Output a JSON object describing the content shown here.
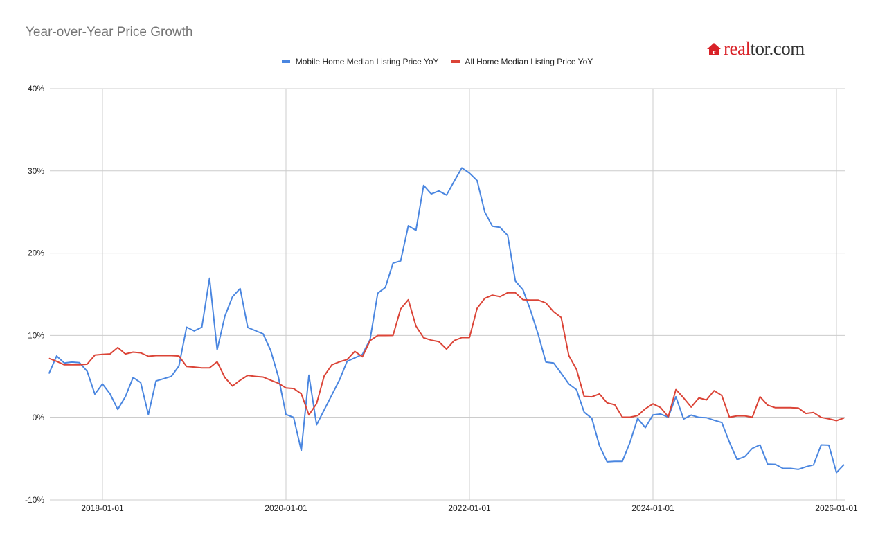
{
  "chart_data": {
    "type": "line",
    "title": "Year-over-Year Price Growth",
    "xlabel": "",
    "ylabel": "",
    "ylim": [
      -10,
      40
    ],
    "y_ticks": [
      "-10%",
      "0%",
      "10%",
      "20%",
      "30%",
      "40%"
    ],
    "y_tick_values": [
      -10,
      0,
      10,
      20,
      30,
      40
    ],
    "x_ticks": [
      "2018-01-01",
      "2020-01-01",
      "2022-01-01",
      "2024-01-01",
      "2026-01-01"
    ],
    "grid": true,
    "legend_position": "top",
    "x": [
      "2017-06",
      "2017-07",
      "2017-08",
      "2017-09",
      "2017-10",
      "2017-11",
      "2017-12",
      "2018-01",
      "2018-02",
      "2018-03",
      "2018-04",
      "2018-05",
      "2018-06",
      "2018-07",
      "2018-08",
      "2018-09",
      "2018-10",
      "2018-11",
      "2018-12",
      "2019-01",
      "2019-02",
      "2019-03",
      "2019-04",
      "2019-05",
      "2019-06",
      "2019-07",
      "2019-08",
      "2019-09",
      "2019-10",
      "2019-11",
      "2019-12",
      "2020-01",
      "2020-02",
      "2020-03",
      "2020-04",
      "2020-05",
      "2020-06",
      "2020-07",
      "2020-08",
      "2020-09",
      "2020-10",
      "2020-11",
      "2020-12",
      "2021-01",
      "2021-02",
      "2021-03",
      "2021-04",
      "2021-05",
      "2021-06",
      "2021-07",
      "2021-08",
      "2021-09",
      "2021-10",
      "2021-11",
      "2021-12",
      "2022-01",
      "2022-02",
      "2022-03",
      "2022-04",
      "2022-05",
      "2022-06",
      "2022-07",
      "2022-08",
      "2022-09",
      "2022-10",
      "2022-11",
      "2022-12",
      "2023-01",
      "2023-02",
      "2023-03",
      "2023-04",
      "2023-05",
      "2023-06",
      "2023-07",
      "2023-08",
      "2023-09",
      "2023-10",
      "2023-11",
      "2023-12",
      "2024-01",
      "2024-02",
      "2024-03",
      "2024-04",
      "2024-05",
      "2024-06",
      "2024-07",
      "2024-08",
      "2024-09",
      "2024-10",
      "2024-11",
      "2024-12",
      "2025-01",
      "2025-02",
      "2025-03",
      "2025-04",
      "2025-05",
      "2025-06",
      "2025-07",
      "2025-08",
      "2025-09",
      "2025-10",
      "2025-11",
      "2025-12",
      "2026-01",
      "2026-02"
    ],
    "series": [
      {
        "name": "Mobile Home Median Listing Price YoY",
        "color": "#4a86e0",
        "values": [
          5.36,
          7.5,
          6.65,
          6.76,
          6.68,
          5.64,
          2.86,
          4.1,
          2.89,
          1.01,
          2.55,
          4.88,
          4.26,
          0.39,
          4.46,
          4.74,
          5.02,
          6.29,
          11.0,
          10.55,
          11.0,
          16.95,
          8.25,
          12.32,
          14.7,
          15.7,
          10.97,
          10.58,
          10.2,
          8.17,
          4.97,
          0.39,
          0.03,
          -4.0,
          5.17,
          -0.87,
          0.95,
          2.78,
          4.6,
          6.85,
          7.27,
          7.69,
          9.52,
          15.13,
          15.83,
          18.78,
          19.06,
          23.33,
          22.77,
          28.24,
          27.2,
          27.56,
          27.06,
          28.74,
          30.37,
          29.73,
          28.83,
          25.0,
          23.27,
          23.13,
          22.15,
          16.62,
          15.55,
          13.03,
          10.08,
          6.76,
          6.65,
          5.4,
          4.1,
          3.4,
          0.67,
          -0.08,
          -3.4,
          -5.36,
          -5.3,
          -5.3,
          -2.98,
          -0.08,
          -1.21,
          0.34,
          0.45,
          0.06,
          2.55,
          -0.17,
          0.31,
          0.03,
          0.0,
          -0.31,
          -0.59,
          -2.98,
          -5.08,
          -4.74,
          -3.73,
          -3.31,
          -5.64,
          -5.67,
          -6.17,
          -6.17,
          -6.29,
          -5.98,
          -5.73,
          -3.31,
          -3.34,
          -6.68,
          -5.7
        ]
      },
      {
        "name": "All Home Median Listing Price YoY",
        "color": "#db4437",
        "values": [
          7.21,
          6.85,
          6.43,
          6.43,
          6.43,
          6.51,
          7.61,
          7.69,
          7.75,
          8.53,
          7.75,
          7.97,
          7.89,
          7.47,
          7.55,
          7.55,
          7.55,
          7.5,
          6.23,
          6.15,
          6.06,
          6.06,
          6.8,
          4.88,
          3.85,
          4.55,
          5.14,
          5.02,
          4.94,
          4.55,
          4.18,
          3.62,
          3.54,
          2.9,
          0.34,
          1.71,
          5.08,
          6.43,
          6.79,
          7.07,
          8.06,
          7.41,
          9.38,
          9.99,
          9.99,
          10.0,
          13.22,
          14.34,
          11.14,
          9.71,
          9.43,
          9.24,
          8.34,
          9.38,
          9.74,
          9.74,
          13.28,
          14.51,
          14.9,
          14.71,
          15.19,
          15.19,
          14.34,
          14.3,
          14.3,
          13.95,
          12.88,
          12.18,
          7.55,
          5.87,
          2.58,
          2.53,
          2.89,
          1.8,
          1.57,
          0.06,
          0.06,
          0.25,
          1.09,
          1.68,
          1.23,
          0.11,
          3.42,
          2.41,
          1.29,
          2.41,
          2.16,
          3.28,
          2.69,
          0.06,
          0.22,
          0.22,
          0.06,
          2.55,
          1.52,
          1.21,
          1.21,
          1.21,
          1.18,
          0.51,
          0.62,
          0.03,
          -0.14,
          -0.36,
          -0.03
        ]
      }
    ]
  },
  "logo": {
    "text_red": "real",
    "text_dark": "tor.com",
    "icon": "house-icon"
  }
}
